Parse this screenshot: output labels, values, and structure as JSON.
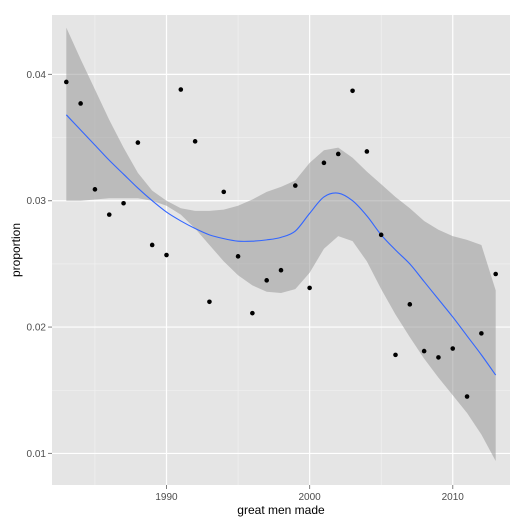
{
  "chart_data": {
    "type": "scatter",
    "title": "",
    "xlabel": "great men made",
    "ylabel": "proportion",
    "xlim": [
      1982,
      2014
    ],
    "ylim": [
      0.0075,
      0.0447
    ],
    "x_ticks": [
      1990,
      2000,
      2010
    ],
    "x_tick_labels": [
      "1990",
      "2000",
      "2010"
    ],
    "y_ticks": [
      0.01,
      0.02,
      0.03,
      0.04
    ],
    "y_tick_labels": [
      "0.01",
      "0.02",
      "0.03",
      "0.04"
    ],
    "grid": true,
    "legend": "none",
    "colors": {
      "panel": "#e5e5e5",
      "grid_major": "#ffffff",
      "grid_minor": "#f2f2f2",
      "points": "#000000",
      "smooth_line": "#3366ff",
      "confidence_band": "#999999"
    },
    "points": {
      "x": [
        1983,
        1984,
        1985,
        1986,
        1987,
        1988,
        1989,
        1990,
        1991,
        1992,
        1993,
        1994,
        1995,
        1996,
        1997,
        1998,
        1999,
        2000,
        2001,
        2002,
        2003,
        2004,
        2005,
        2006,
        2007,
        2008,
        2009,
        2010,
        2011,
        2012,
        2013
      ],
      "y": [
        0.0394,
        0.0377,
        0.0309,
        0.0289,
        0.0298,
        0.0346,
        0.0265,
        0.0257,
        0.0388,
        0.0347,
        0.022,
        0.0307,
        0.0256,
        0.0211,
        0.0237,
        0.0245,
        0.0312,
        0.0231,
        0.033,
        0.0337,
        0.0387,
        0.0339,
        0.0273,
        0.0178,
        0.0218,
        0.0181,
        0.0176,
        0.0183,
        0.0145,
        0.0195,
        0.0242
      ]
    },
    "smooth": {
      "x": [
        1983,
        1984,
        1985,
        1986,
        1987,
        1988,
        1989,
        1990,
        1991,
        1992,
        1993,
        1994,
        1995,
        1996,
        1997,
        1998,
        1999,
        2000,
        2001,
        2002,
        2003,
        2004,
        2005,
        2006,
        2007,
        2008,
        2009,
        2010,
        2011,
        2012,
        2013
      ],
      "fit": [
        0.0368,
        0.0356,
        0.0344,
        0.0332,
        0.0321,
        0.031,
        0.03,
        0.0291,
        0.0284,
        0.0278,
        0.0273,
        0.027,
        0.0268,
        0.0268,
        0.0269,
        0.0271,
        0.0276,
        0.029,
        0.0303,
        0.0306,
        0.03,
        0.0288,
        0.0273,
        0.0261,
        0.025,
        0.0236,
        0.0222,
        0.0208,
        0.0193,
        0.0178,
        0.0162
      ],
      "lower": [
        0.03,
        0.03,
        0.0301,
        0.0302,
        0.0302,
        0.0302,
        0.03,
        0.0296,
        0.0289,
        0.0278,
        0.0265,
        0.0252,
        0.0241,
        0.0233,
        0.0228,
        0.0227,
        0.023,
        0.0243,
        0.0262,
        0.0272,
        0.0268,
        0.0252,
        0.023,
        0.021,
        0.0192,
        0.0175,
        0.016,
        0.0146,
        0.0132,
        0.0115,
        0.0094
      ],
      "upper": [
        0.0437,
        0.0412,
        0.0388,
        0.0364,
        0.0342,
        0.0322,
        0.0308,
        0.03,
        0.0294,
        0.0292,
        0.0292,
        0.0293,
        0.0296,
        0.0301,
        0.0307,
        0.0311,
        0.0316,
        0.033,
        0.034,
        0.0342,
        0.0334,
        0.0323,
        0.0313,
        0.0303,
        0.0294,
        0.0284,
        0.0277,
        0.0272,
        0.0269,
        0.0265,
        0.0229
      ]
    }
  }
}
